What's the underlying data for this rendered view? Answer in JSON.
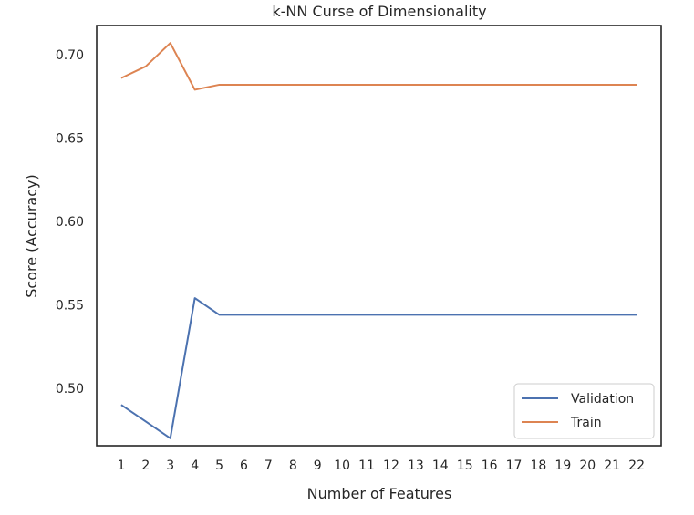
{
  "chart_data": {
    "type": "line",
    "title": "k-NN Curse of Dimensionality",
    "xlabel": "Number of Features",
    "ylabel": "Score (Accuracy)",
    "x": [
      1,
      2,
      3,
      4,
      5,
      6,
      7,
      8,
      9,
      10,
      11,
      12,
      13,
      14,
      15,
      16,
      17,
      18,
      19,
      20,
      21,
      22
    ],
    "xlim": [
      0.0,
      23.0
    ],
    "ylim": [
      0.4655,
      0.7175
    ],
    "yticks": [
      "0.50",
      "0.55",
      "0.60",
      "0.65",
      "0.70"
    ],
    "grid": false,
    "legend_position": "lower-right",
    "series": [
      {
        "name": "Validation",
        "color": "#4c72b0",
        "values": [
          0.49,
          0.48,
          0.47,
          0.554,
          0.544,
          0.544,
          0.544,
          0.544,
          0.544,
          0.544,
          0.544,
          0.544,
          0.544,
          0.544,
          0.544,
          0.544,
          0.544,
          0.544,
          0.544,
          0.544,
          0.544,
          0.544
        ]
      },
      {
        "name": "Train",
        "color": "#dd8452",
        "values": [
          0.686,
          0.693,
          0.707,
          0.679,
          0.682,
          0.682,
          0.682,
          0.682,
          0.682,
          0.682,
          0.682,
          0.682,
          0.682,
          0.682,
          0.682,
          0.682,
          0.682,
          0.682,
          0.682,
          0.682,
          0.682,
          0.682
        ]
      }
    ]
  }
}
